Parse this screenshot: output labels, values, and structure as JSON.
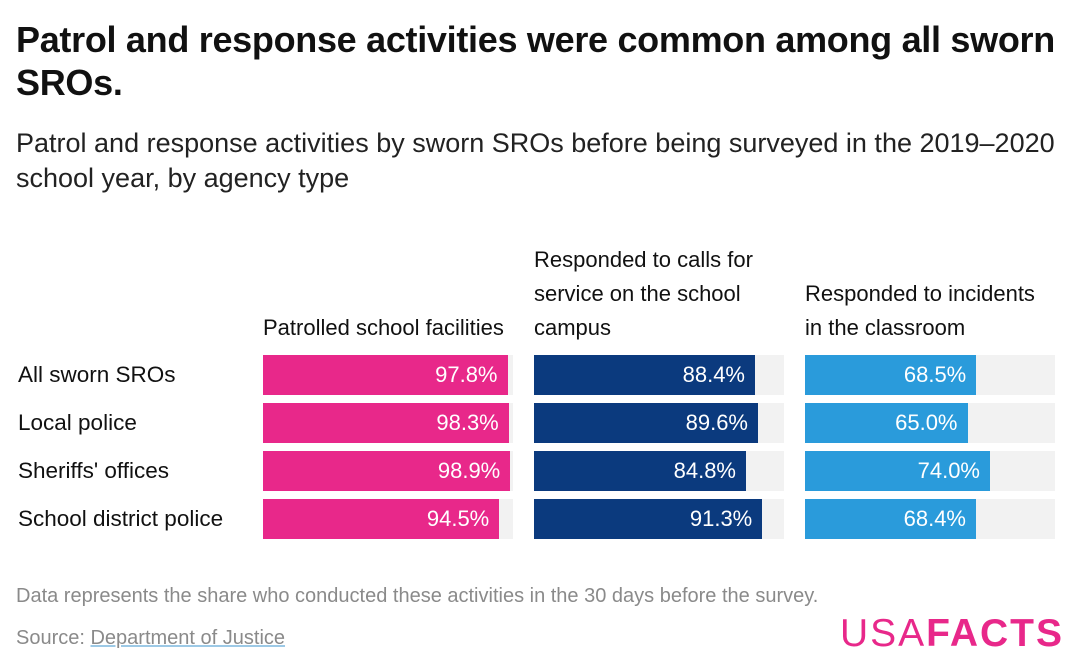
{
  "title": "Patrol and response activities were common among all sworn SROs.",
  "subtitle": "Patrol and response activities by sworn SROs before being surveyed in the 2019–2020 school year, by agency type",
  "footnote": "Data represents the share who conducted these activities in the 30 days before the survey.",
  "source_prefix": "Source: ",
  "source_link": "Department of Justice",
  "logo": {
    "part1": "USA",
    "part2": "FACTS"
  },
  "chart_data": {
    "type": "bar",
    "orientation": "horizontal",
    "layout": "small-multiples",
    "title": "Patrol and response activities were common among all sworn SROs.",
    "subtitle": "Patrol and response activities by sworn SROs before being surveyed in the 2019–2020 school year, by agency type",
    "categories": [
      "All sworn SROs",
      "Local police",
      "Sheriffs' offices",
      "School district police"
    ],
    "xlim": [
      0,
      100
    ],
    "unit": "%",
    "grid": false,
    "series": [
      {
        "name": "Patrolled school facilities",
        "color": "#e8288a",
        "values": [
          97.8,
          98.3,
          98.9,
          94.5
        ],
        "labels": [
          "97.8%",
          "98.3%",
          "98.9%",
          "94.5%"
        ]
      },
      {
        "name": "Responded to calls for service on the school campus",
        "color": "#0b3a7e",
        "values": [
          88.4,
          89.6,
          84.8,
          91.3
        ],
        "labels": [
          "88.4%",
          "89.6%",
          "84.8%",
          "91.3%"
        ]
      },
      {
        "name": "Responded to incidents in the classroom",
        "color": "#2a9bdb",
        "values": [
          68.5,
          65.0,
          74.0,
          68.4
        ],
        "labels": [
          "68.5%",
          "65.0%",
          "74.0%",
          "68.4%"
        ]
      }
    ]
  }
}
